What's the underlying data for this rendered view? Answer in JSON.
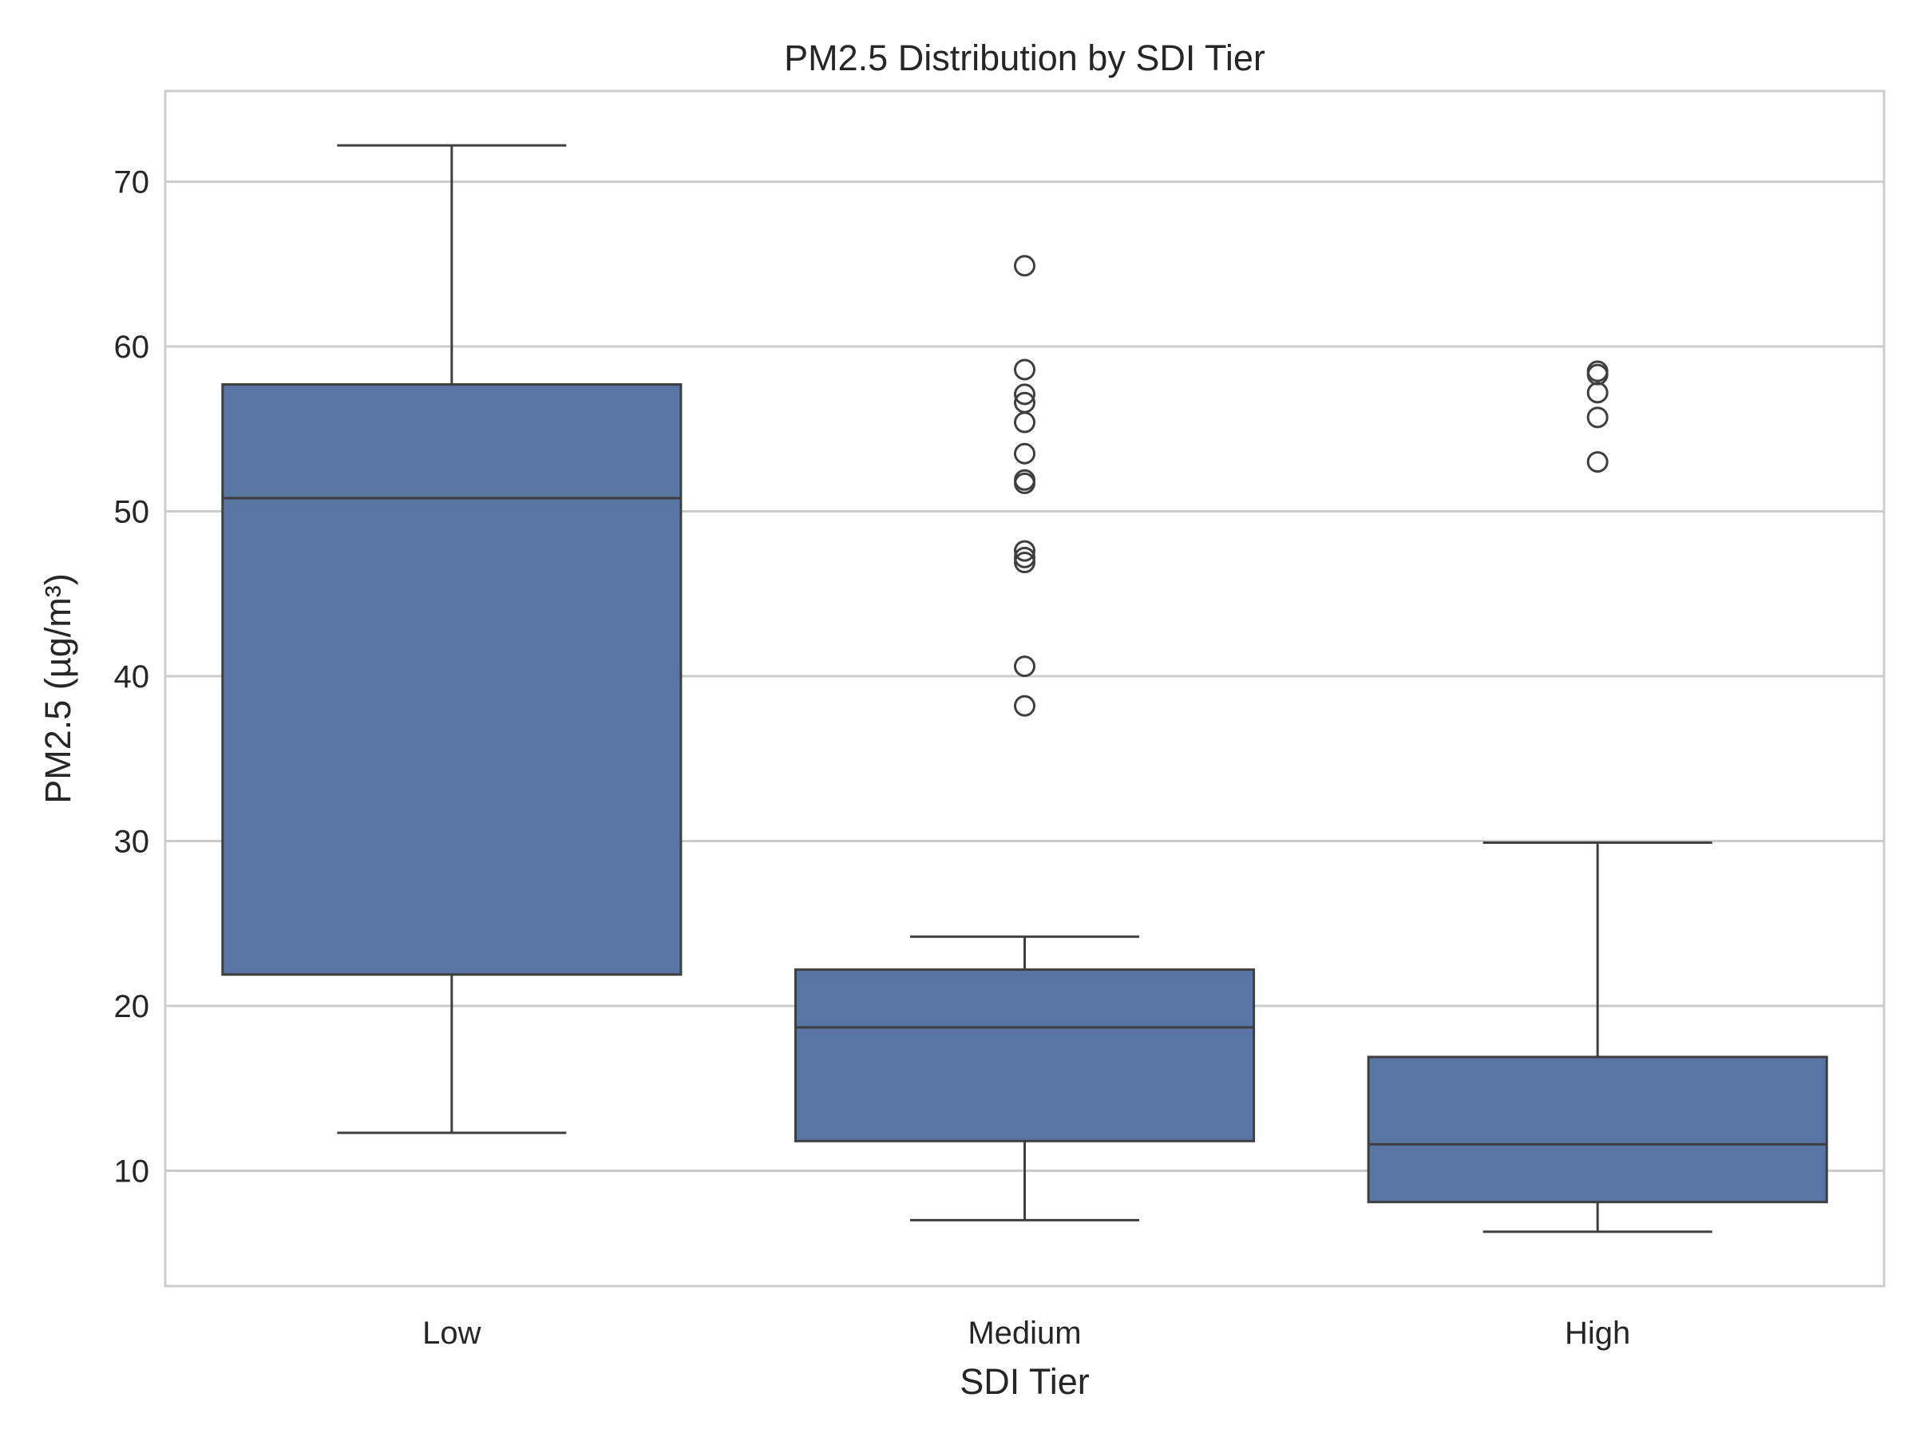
{
  "chart_data": {
    "type": "box",
    "title": "PM2.5 Distribution by SDI Tier",
    "xlabel": "SDI Tier",
    "ylabel": "PM2.5 (µg/m³)",
    "ylim": [
      3,
      75.5
    ],
    "yticks": [
      10,
      20,
      30,
      40,
      50,
      60,
      70
    ],
    "grid": "horizontal",
    "colors": {
      "box_fill": "#5975a4",
      "line": "#3f3f3f",
      "grid": "#cccccc",
      "frame": "#cccccc"
    },
    "categories": [
      "Low",
      "Medium",
      "High"
    ],
    "boxes": [
      {
        "category": "Low",
        "whisker_low": 12.3,
        "q1": 21.9,
        "median": 50.8,
        "q3": 57.7,
        "whisker_high": 72.2,
        "outliers": []
      },
      {
        "category": "Medium",
        "whisker_low": 7.0,
        "q1": 11.8,
        "median": 18.7,
        "q3": 22.2,
        "whisker_high": 24.2,
        "outliers": [
          64.9,
          58.6,
          57.1,
          56.6,
          55.4,
          53.5,
          51.9,
          51.7,
          47.6,
          47.2,
          46.9,
          40.6,
          38.2
        ]
      },
      {
        "category": "High",
        "whisker_low": 6.3,
        "q1": 8.1,
        "median": 11.6,
        "q3": 16.9,
        "whisker_high": 29.9,
        "outliers": [
          58.5,
          58.3,
          57.2,
          55.7,
          53.0
        ]
      }
    ]
  }
}
